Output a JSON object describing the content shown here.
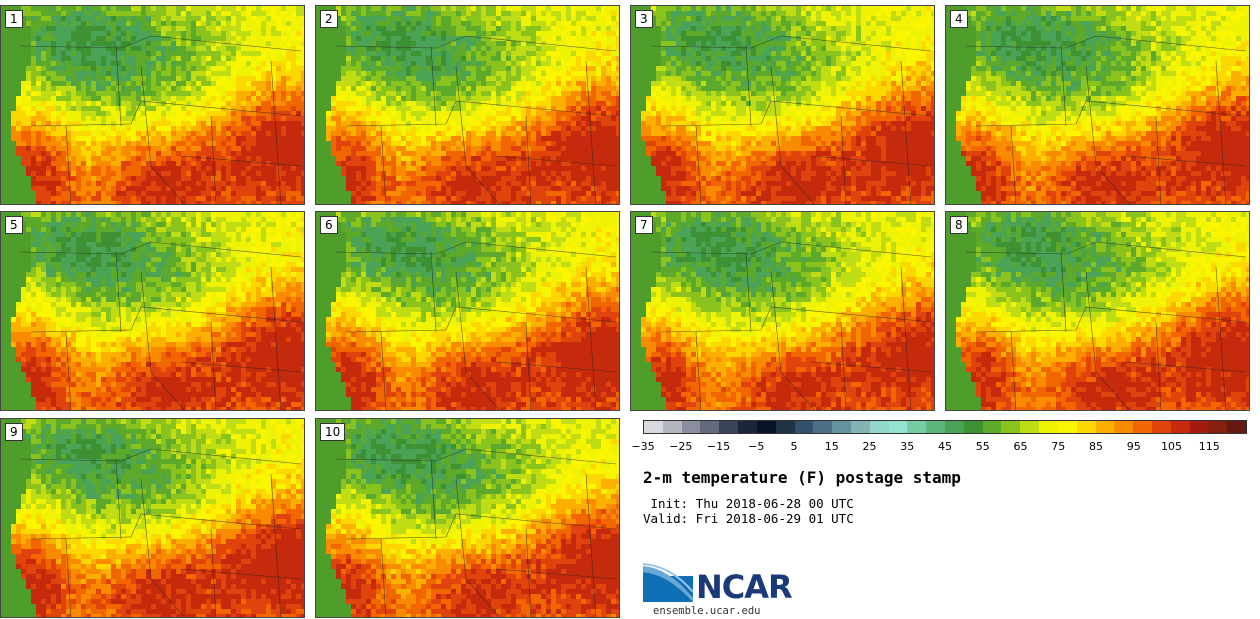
{
  "panels": [
    {
      "label": "1"
    },
    {
      "label": "2"
    },
    {
      "label": "3"
    },
    {
      "label": "4"
    },
    {
      "label": "5"
    },
    {
      "label": "6"
    },
    {
      "label": "7"
    },
    {
      "label": "8"
    },
    {
      "label": "9"
    },
    {
      "label": "10"
    }
  ],
  "colorbar": {
    "colors": [
      "#d7d9de",
      "#b4b6c0",
      "#8b8e9c",
      "#636a7c",
      "#3b4456",
      "#1d2638",
      "#0b1427",
      "#1f3346",
      "#34506a",
      "#4c7186",
      "#66919f",
      "#84b3b4",
      "#93d6cb",
      "#94e3d0",
      "#77cca1",
      "#5db77c",
      "#4aa357",
      "#3f9233",
      "#5ca92c",
      "#8ac31d",
      "#bfdc14",
      "#eef306",
      "#fbf500",
      "#fcd800",
      "#fbb000",
      "#f88b00",
      "#f26600",
      "#e0430b",
      "#c52a0c",
      "#a41a0c",
      "#842010",
      "#641a10"
    ],
    "ticks": [
      "−35",
      "−25",
      "−15",
      "−5",
      "5",
      "15",
      "25",
      "35",
      "45",
      "55",
      "65",
      "75",
      "85",
      "95",
      "105",
      "115"
    ]
  },
  "title": "2-m temperature (F) postage stamp",
  "init_line": " Init: Thu 2018-06-28 00 UTC",
  "valid_line": "Valid: Fri 2018-06-29 01 UTC",
  "logo_text": "NCAR",
  "url": "ensemble.ucar.edu"
}
